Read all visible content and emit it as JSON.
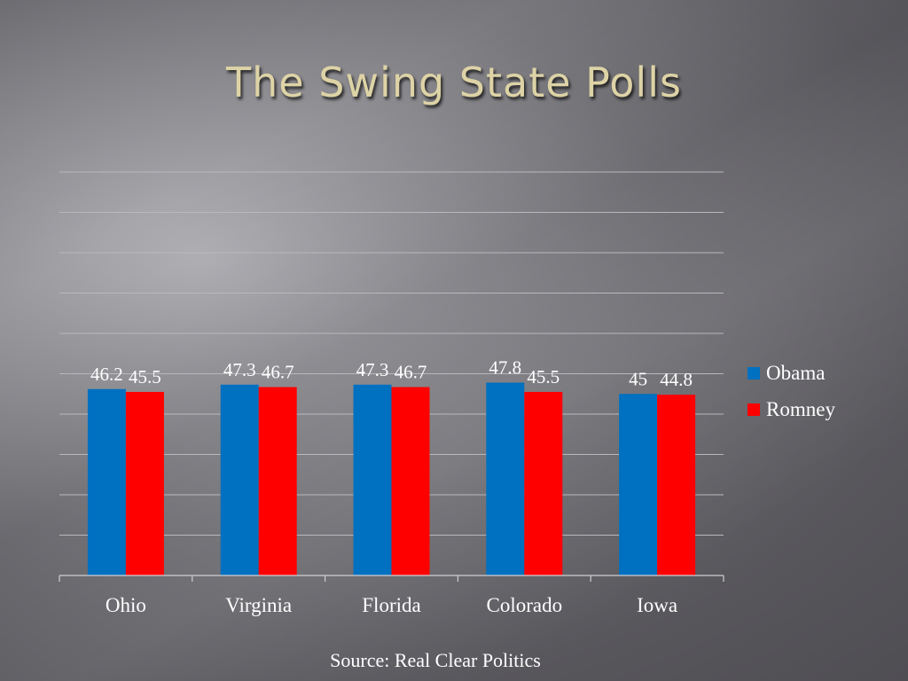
{
  "slide": {
    "title": "The Swing State Polls",
    "source": "Source: Real Clear Politics"
  },
  "chart_data": {
    "type": "bar",
    "title": "",
    "xlabel": "",
    "ylabel": "",
    "categories": [
      "Ohio",
      "Virginia",
      "Florida",
      "Colorado",
      "Iowa"
    ],
    "series": [
      {
        "name": "Obama",
        "color": "#0070c0",
        "values": [
          46.2,
          47.3,
          47.3,
          47.8,
          45
        ]
      },
      {
        "name": "Romney",
        "color": "#ff0000",
        "values": [
          45.5,
          46.7,
          46.7,
          45.5,
          44.8
        ]
      }
    ],
    "ylim": [
      0,
      100
    ],
    "grid": true,
    "legend_position": "right",
    "data_labels": true
  }
}
